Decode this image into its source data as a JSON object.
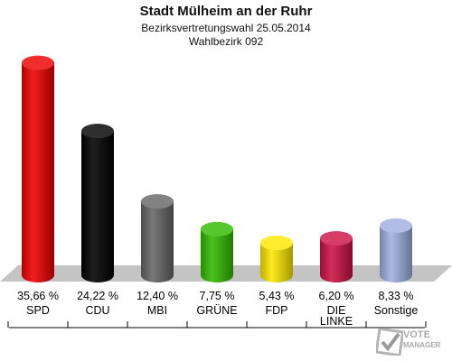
{
  "header": {
    "title": "Stadt Mülheim an der Ruhr",
    "subtitle": "Bezirksvertretungswahl 25.05.2014",
    "district": "Wahlbezirk 092"
  },
  "chart_data": {
    "type": "bar",
    "categories": [
      "SPD",
      "CDU",
      "MBI",
      "GRÜNE",
      "FDP",
      "DIE LINKE",
      "Sonstige"
    ],
    "category_lines": [
      [
        "SPD"
      ],
      [
        "CDU"
      ],
      [
        "MBI"
      ],
      [
        "GRÜNE"
      ],
      [
        "FDP"
      ],
      [
        "DIE",
        "LINKE"
      ],
      [
        "Sonstige"
      ]
    ],
    "values": [
      35.66,
      24.22,
      12.4,
      7.75,
      5.43,
      6.2,
      8.33
    ],
    "value_labels": [
      "35,66 %",
      "24,22 %",
      "12,40 %",
      "7,75 %",
      "5,43 %",
      "6,20 %",
      "8,33 %"
    ],
    "colors": [
      "#ee0000",
      "#000000",
      "#666666",
      "#33bb00",
      "#ffe800",
      "#cc1144",
      "#9fb0e0"
    ],
    "grid": false,
    "legend": "none"
  },
  "watermark": {
    "line1": "VOTE",
    "line2": "MANAGER"
  }
}
